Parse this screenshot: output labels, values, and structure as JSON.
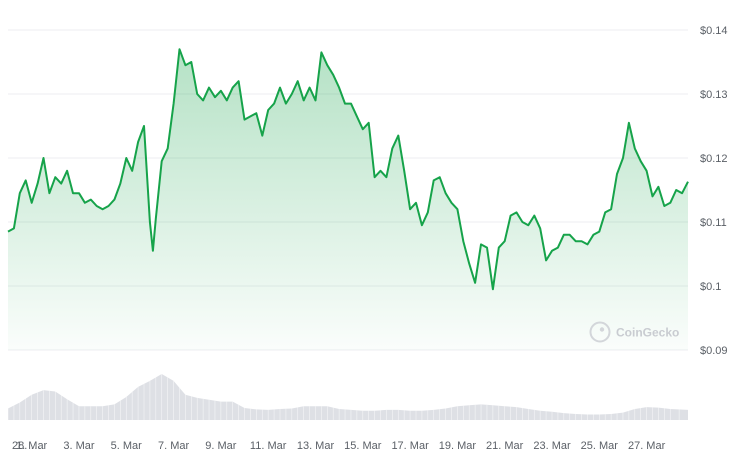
{
  "watermark": "CoinGecko",
  "colors": {
    "line": "#16a34a",
    "fill_top": "#16a34a",
    "volume": "#d8dbe0",
    "grid": "#eceef1",
    "text": "#5a5f66"
  },
  "chart_data": {
    "type": "area",
    "title": "",
    "xlabel": "",
    "ylabel": "",
    "grid": true,
    "ylim": [
      0.09,
      0.14
    ],
    "y_ticks": [
      {
        "value": 0.14,
        "label": "$0.14"
      },
      {
        "value": 0.13,
        "label": "$0.13"
      },
      {
        "value": 0.12,
        "label": "$0.12"
      },
      {
        "value": 0.11,
        "label": "$0.11"
      },
      {
        "value": 0.1,
        "label": "$0.1"
      },
      {
        "value": 0.09,
        "label": "$0.09"
      }
    ],
    "x_ticks": [
      "28. …",
      "1. Mar",
      "3. Mar",
      "5. Mar",
      "7. Mar",
      "9. Mar",
      "11. Mar",
      "13. Mar",
      "15. Mar",
      "17. Mar",
      "19. Mar",
      "21. Mar",
      "23. Mar",
      "25. Mar",
      "27. Mar"
    ],
    "x_start": "2025-02-28",
    "x_end": "2025-03-28T18:00",
    "series": [
      {
        "values": [
          [
            "2025-02-28T00:00",
            0.1085
          ],
          [
            "2025-02-28T06:00",
            0.109
          ],
          [
            "2025-02-28T12:00",
            0.1145
          ],
          [
            "2025-02-28T18:00",
            0.1165
          ],
          [
            "2025-03-01T00:00",
            0.113
          ],
          [
            "2025-03-01T06:00",
            0.116
          ],
          [
            "2025-03-01T12:00",
            0.12
          ],
          [
            "2025-03-01T18:00",
            0.1145
          ],
          [
            "2025-03-02T00:00",
            0.117
          ],
          [
            "2025-03-02T06:00",
            0.116
          ],
          [
            "2025-03-02T12:00",
            0.118
          ],
          [
            "2025-03-02T18:00",
            0.1145
          ],
          [
            "2025-03-03T00:00",
            0.1145
          ],
          [
            "2025-03-03T06:00",
            0.113
          ],
          [
            "2025-03-03T12:00",
            0.1135
          ],
          [
            "2025-03-03T18:00",
            0.1125
          ],
          [
            "2025-03-04T00:00",
            0.112
          ],
          [
            "2025-03-04T06:00",
            0.1125
          ],
          [
            "2025-03-04T12:00",
            0.1135
          ],
          [
            "2025-03-04T18:00",
            0.116
          ],
          [
            "2025-03-05T00:00",
            0.12
          ],
          [
            "2025-03-05T06:00",
            0.118
          ],
          [
            "2025-03-05T12:00",
            0.1225
          ],
          [
            "2025-03-05T18:00",
            0.125
          ],
          [
            "2025-03-06T00:00",
            0.11
          ],
          [
            "2025-03-06T03:00",
            0.1055
          ],
          [
            "2025-03-06T06:00",
            0.1105
          ],
          [
            "2025-03-06T12:00",
            0.1195
          ],
          [
            "2025-03-06T18:00",
            0.1215
          ],
          [
            "2025-03-07T00:00",
            0.1285
          ],
          [
            "2025-03-07T06:00",
            0.137
          ],
          [
            "2025-03-07T12:00",
            0.1345
          ],
          [
            "2025-03-07T18:00",
            0.135
          ],
          [
            "2025-03-08T00:00",
            0.13
          ],
          [
            "2025-03-08T06:00",
            0.129
          ],
          [
            "2025-03-08T12:00",
            0.131
          ],
          [
            "2025-03-08T18:00",
            0.1295
          ],
          [
            "2025-03-09T00:00",
            0.1305
          ],
          [
            "2025-03-09T06:00",
            0.129
          ],
          [
            "2025-03-09T12:00",
            0.131
          ],
          [
            "2025-03-09T18:00",
            0.132
          ],
          [
            "2025-03-10T00:00",
            0.126
          ],
          [
            "2025-03-10T06:00",
            0.1265
          ],
          [
            "2025-03-10T12:00",
            0.127
          ],
          [
            "2025-03-10T18:00",
            0.1235
          ],
          [
            "2025-03-11T00:00",
            0.1275
          ],
          [
            "2025-03-11T06:00",
            0.1285
          ],
          [
            "2025-03-11T12:00",
            0.131
          ],
          [
            "2025-03-11T18:00",
            0.1285
          ],
          [
            "2025-03-12T00:00",
            0.13
          ],
          [
            "2025-03-12T06:00",
            0.132
          ],
          [
            "2025-03-12T12:00",
            0.129
          ],
          [
            "2025-03-12T18:00",
            0.131
          ],
          [
            "2025-03-13T00:00",
            0.129
          ],
          [
            "2025-03-13T06:00",
            0.1365
          ],
          [
            "2025-03-13T12:00",
            0.1345
          ],
          [
            "2025-03-13T18:00",
            0.133
          ],
          [
            "2025-03-14T00:00",
            0.131
          ],
          [
            "2025-03-14T06:00",
            0.1285
          ],
          [
            "2025-03-14T12:00",
            0.1285
          ],
          [
            "2025-03-14T18:00",
            0.1265
          ],
          [
            "2025-03-15T00:00",
            0.1245
          ],
          [
            "2025-03-15T06:00",
            0.1255
          ],
          [
            "2025-03-15T12:00",
            0.117
          ],
          [
            "2025-03-15T18:00",
            0.118
          ],
          [
            "2025-03-16T00:00",
            0.117
          ],
          [
            "2025-03-16T06:00",
            0.1215
          ],
          [
            "2025-03-16T12:00",
            0.1235
          ],
          [
            "2025-03-16T18:00",
            0.118
          ],
          [
            "2025-03-17T00:00",
            0.112
          ],
          [
            "2025-03-17T06:00",
            0.113
          ],
          [
            "2025-03-17T12:00",
            0.1095
          ],
          [
            "2025-03-17T18:00",
            0.1115
          ],
          [
            "2025-03-18T00:00",
            0.1165
          ],
          [
            "2025-03-18T06:00",
            0.117
          ],
          [
            "2025-03-18T12:00",
            0.1145
          ],
          [
            "2025-03-18T18:00",
            0.113
          ],
          [
            "2025-03-19T00:00",
            0.112
          ],
          [
            "2025-03-19T06:00",
            0.107
          ],
          [
            "2025-03-19T12:00",
            0.1035
          ],
          [
            "2025-03-19T18:00",
            0.1005
          ],
          [
            "2025-03-20T00:00",
            0.1065
          ],
          [
            "2025-03-20T06:00",
            0.106
          ],
          [
            "2025-03-20T12:00",
            0.0995
          ],
          [
            "2025-03-20T18:00",
            0.106
          ],
          [
            "2025-03-21T00:00",
            0.107
          ],
          [
            "2025-03-21T06:00",
            0.111
          ],
          [
            "2025-03-21T12:00",
            0.1115
          ],
          [
            "2025-03-21T18:00",
            0.11
          ],
          [
            "2025-03-22T00:00",
            0.1095
          ],
          [
            "2025-03-22T06:00",
            0.111
          ],
          [
            "2025-03-22T12:00",
            0.109
          ],
          [
            "2025-03-22T18:00",
            0.104
          ],
          [
            "2025-03-23T00:00",
            0.1055
          ],
          [
            "2025-03-23T06:00",
            0.106
          ],
          [
            "2025-03-23T12:00",
            0.108
          ],
          [
            "2025-03-23T18:00",
            0.108
          ],
          [
            "2025-03-24T00:00",
            0.107
          ],
          [
            "2025-03-24T06:00",
            0.107
          ],
          [
            "2025-03-24T12:00",
            0.1065
          ],
          [
            "2025-03-24T18:00",
            0.108
          ],
          [
            "2025-03-25T00:00",
            0.1085
          ],
          [
            "2025-03-25T06:00",
            0.1115
          ],
          [
            "2025-03-25T12:00",
            0.112
          ],
          [
            "2025-03-25T18:00",
            0.1175
          ],
          [
            "2025-03-26T00:00",
            0.12
          ],
          [
            "2025-03-26T06:00",
            0.1255
          ],
          [
            "2025-03-26T12:00",
            0.1215
          ],
          [
            "2025-03-26T18:00",
            0.1195
          ],
          [
            "2025-03-27T00:00",
            0.118
          ],
          [
            "2025-03-27T06:00",
            0.114
          ],
          [
            "2025-03-27T12:00",
            0.1155
          ],
          [
            "2025-03-27T18:00",
            0.1125
          ],
          [
            "2025-03-28T00:00",
            0.113
          ],
          [
            "2025-03-28T06:00",
            0.115
          ],
          [
            "2025-03-28T12:00",
            0.1145
          ],
          [
            "2025-03-28T18:00",
            0.1163
          ]
        ]
      }
    ],
    "volume": [
      [
        "2025-02-28T00:00",
        0.25
      ],
      [
        "2025-02-28T12:00",
        0.38
      ],
      [
        "2025-03-01T00:00",
        0.55
      ],
      [
        "2025-03-01T12:00",
        0.65
      ],
      [
        "2025-03-02T00:00",
        0.62
      ],
      [
        "2025-03-02T12:00",
        0.45
      ],
      [
        "2025-03-03T00:00",
        0.3
      ],
      [
        "2025-03-03T12:00",
        0.3
      ],
      [
        "2025-03-04T00:00",
        0.3
      ],
      [
        "2025-03-04T12:00",
        0.34
      ],
      [
        "2025-03-05T00:00",
        0.5
      ],
      [
        "2025-03-05T12:00",
        0.72
      ],
      [
        "2025-03-06T00:00",
        0.85
      ],
      [
        "2025-03-06T12:00",
        1.0
      ],
      [
        "2025-03-07T00:00",
        0.85
      ],
      [
        "2025-03-07T12:00",
        0.55
      ],
      [
        "2025-03-08T00:00",
        0.48
      ],
      [
        "2025-03-08T12:00",
        0.44
      ],
      [
        "2025-03-09T00:00",
        0.4
      ],
      [
        "2025-03-09T12:00",
        0.4
      ],
      [
        "2025-03-10T00:00",
        0.26
      ],
      [
        "2025-03-10T12:00",
        0.23
      ],
      [
        "2025-03-11T00:00",
        0.22
      ],
      [
        "2025-03-11T12:00",
        0.24
      ],
      [
        "2025-03-12T00:00",
        0.25
      ],
      [
        "2025-03-12T12:00",
        0.3
      ],
      [
        "2025-03-13T00:00",
        0.3
      ],
      [
        "2025-03-13T12:00",
        0.3
      ],
      [
        "2025-03-14T00:00",
        0.24
      ],
      [
        "2025-03-14T12:00",
        0.22
      ],
      [
        "2025-03-15T00:00",
        0.2
      ],
      [
        "2025-03-15T12:00",
        0.2
      ],
      [
        "2025-03-16T00:00",
        0.22
      ],
      [
        "2025-03-16T12:00",
        0.22
      ],
      [
        "2025-03-17T00:00",
        0.2
      ],
      [
        "2025-03-17T12:00",
        0.2
      ],
      [
        "2025-03-18T00:00",
        0.22
      ],
      [
        "2025-03-18T12:00",
        0.25
      ],
      [
        "2025-03-19T00:00",
        0.3
      ],
      [
        "2025-03-19T12:00",
        0.32
      ],
      [
        "2025-03-20T00:00",
        0.34
      ],
      [
        "2025-03-20T12:00",
        0.32
      ],
      [
        "2025-03-21T00:00",
        0.3
      ],
      [
        "2025-03-21T12:00",
        0.28
      ],
      [
        "2025-03-22T00:00",
        0.24
      ],
      [
        "2025-03-22T12:00",
        0.2
      ],
      [
        "2025-03-23T00:00",
        0.18
      ],
      [
        "2025-03-23T12:00",
        0.15
      ],
      [
        "2025-03-24T00:00",
        0.13
      ],
      [
        "2025-03-24T12:00",
        0.12
      ],
      [
        "2025-03-25T00:00",
        0.12
      ],
      [
        "2025-03-25T12:00",
        0.13
      ],
      [
        "2025-03-26T00:00",
        0.16
      ],
      [
        "2025-03-26T12:00",
        0.24
      ],
      [
        "2025-03-27T00:00",
        0.28
      ],
      [
        "2025-03-27T12:00",
        0.27
      ],
      [
        "2025-03-28T00:00",
        0.24
      ],
      [
        "2025-03-28T18:00",
        0.22
      ]
    ]
  }
}
